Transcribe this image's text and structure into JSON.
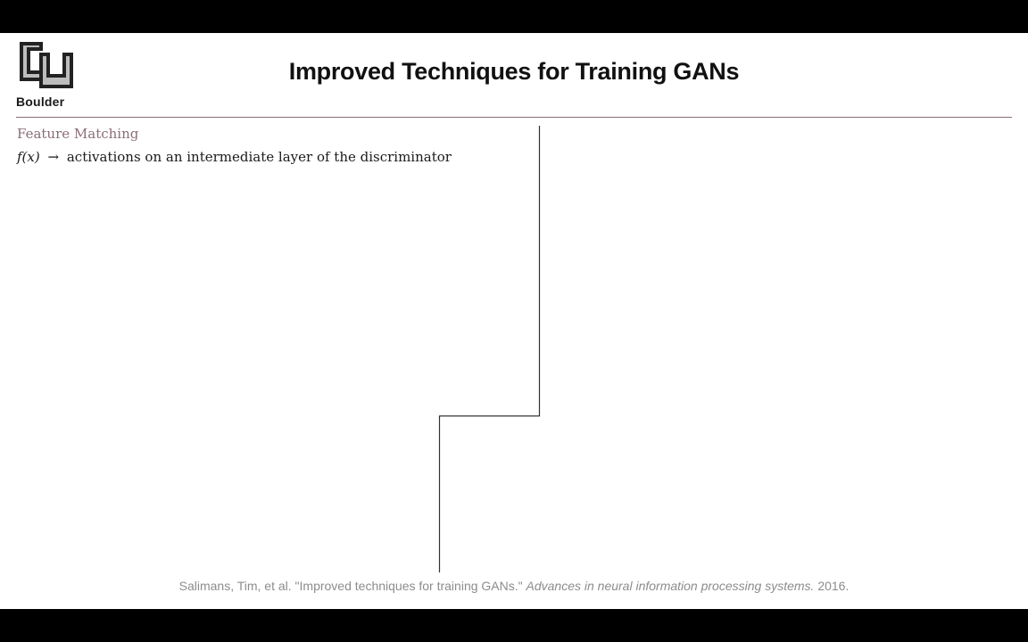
{
  "logo": {
    "icon": "cu-boulder-logo-icon",
    "text": "Boulder"
  },
  "slide": {
    "title": "Improved Techniques for Training GANs",
    "section_heading": "Feature Matching",
    "formula": {
      "math": "f(x)",
      "arrow": "→",
      "text": "activations on an intermediate layer of the discriminator"
    }
  },
  "citation": {
    "authors": "Salimans, Tim, et al.",
    "paper_title": "\"Improved techniques for training GANs.\"",
    "venue": "Advances in neural information processing systems.",
    "year": "2016."
  },
  "colors": {
    "letterbox": "#000000",
    "background": "#ffffff",
    "rule": "#8a6a72",
    "heading": "#8a6e76",
    "citation": "#8c8c8c"
  }
}
